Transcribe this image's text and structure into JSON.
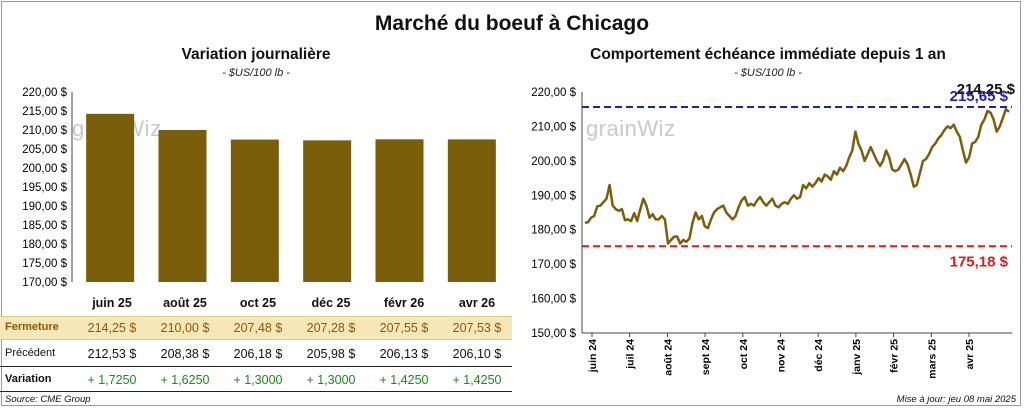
{
  "title": "Marché du boeuf à Chicago",
  "left_panel": {
    "title": "Variation journalière",
    "subtitle": "- $US/100 lb -",
    "watermark": "grainWiz"
  },
  "right_panel": {
    "title": "Comportement échéance immédiate depuis 1 an",
    "subtitle": "- $US/100 lb -",
    "watermark": "grainWiz",
    "high_label": "215,65 $",
    "low_label": "175,18 $",
    "last_label": "214,25 $"
  },
  "table": {
    "row_labels": {
      "close": "Fermeture",
      "prev": "Précédent",
      "var": "Variation"
    },
    "months": [
      "juin 25",
      "août 25",
      "oct 25",
      "déc 25",
      "févr 26",
      "avr 26"
    ],
    "close": [
      "214,25  $",
      "210,00  $",
      "207,48  $",
      "207,28  $",
      "207,55  $",
      "207,53  $"
    ],
    "prev": [
      "212,53  $",
      "208,38  $",
      "206,18  $",
      "205,98  $",
      "206,13  $",
      "206,10  $"
    ],
    "var": [
      "+ 1,7250",
      "+ 1,6250",
      "+ 1,3000",
      "+ 1,3000",
      "+ 1,4250",
      "+ 1,4250"
    ]
  },
  "footer": {
    "source": "Source: CME Group",
    "updated": "Mise à jour: jeu 08 mai 2025"
  },
  "colors": {
    "bar": "#7b5e0a",
    "line": "#7b5e0a",
    "high": "#1f1fb0",
    "low": "#e01b1b",
    "var": "#1a8a1a"
  },
  "chart_data": [
    {
      "type": "bar",
      "title": "Variation journalière",
      "subtitle": "- $US/100 lb -",
      "categories": [
        "juin 25",
        "août 25",
        "oct 25",
        "déc 25",
        "févr 26",
        "avr 26"
      ],
      "values": [
        214.25,
        210.0,
        207.48,
        207.28,
        207.55,
        207.53
      ],
      "ylim": [
        170,
        220
      ],
      "yticks": [
        "170,00 $",
        "175,00 $",
        "180,00 $",
        "185,00 $",
        "190,00 $",
        "195,00 $",
        "200,00 $",
        "205,00 $",
        "210,00 $",
        "215,00 $",
        "220,00 $"
      ],
      "grid": false
    },
    {
      "type": "line",
      "title": "Comportement échéance immédiate depuis 1 an",
      "subtitle": "- $US/100 lb -",
      "ylim": [
        150,
        220
      ],
      "yticks": [
        "150,00 $",
        "160,00 $",
        "170,00 $",
        "180,00 $",
        "190,00 $",
        "200,00 $",
        "210,00 $",
        "220,00 $"
      ],
      "xticks": [
        "juin 24",
        "juil 24",
        "août 24",
        "sept 24",
        "oct 24",
        "nov 24",
        "déc 24",
        "janv 25",
        "févr 25",
        "mars 25",
        "avr 25"
      ],
      "high": 215.65,
      "low": 175.18,
      "last": 214.25,
      "values": [
        182.0,
        182.2,
        183.5,
        184.0,
        186.8,
        187.0,
        188.0,
        189.0,
        193.0,
        187.0,
        186.0,
        185.5,
        186.0,
        182.8,
        183.0,
        182.5,
        184.8,
        182.5,
        186.0,
        189.0,
        187.0,
        183.5,
        184.5,
        183.0,
        183.0,
        184.0,
        183.0,
        176.0,
        177.0,
        178.0,
        178.0,
        176.0,
        177.0,
        176.5,
        177.5,
        182.0,
        185.0,
        183.0,
        184.0,
        181.0,
        180.5,
        183.0,
        185.0,
        186.0,
        186.5,
        187.0,
        185.0,
        184.0,
        183.0,
        184.0,
        186.5,
        188.5,
        189.5,
        187.0,
        187.5,
        187.0,
        188.5,
        189.5,
        188.0,
        187.0,
        188.0,
        189.0,
        187.0,
        186.5,
        187.5,
        188.0,
        187.5,
        189.0,
        190.0,
        189.0,
        189.5,
        193.0,
        192.0,
        193.5,
        192.5,
        193.5,
        195.0,
        194.0,
        196.0,
        195.5,
        194.5,
        197.0,
        196.0,
        198.0,
        197.0,
        198.5,
        201.0,
        203.0,
        208.5,
        205.0,
        203.0,
        200.0,
        202.0,
        204.0,
        202.0,
        200.0,
        198.5,
        200.0,
        203.0,
        201.0,
        197.5,
        197.0,
        197.5,
        199.0,
        200.5,
        199.0,
        196.0,
        192.5,
        193.0,
        196.5,
        200.0,
        200.5,
        202.0,
        204.0,
        205.0,
        206.5,
        207.5,
        209.0,
        210.0,
        209.5,
        210.5,
        208.5,
        207.0,
        203.0,
        199.5,
        201.0,
        205.0,
        205.5,
        207.0,
        210.5,
        212.0,
        214.5,
        214.0,
        212.0,
        208.5,
        210.0,
        212.5,
        215.0,
        214.25
      ]
    }
  ]
}
